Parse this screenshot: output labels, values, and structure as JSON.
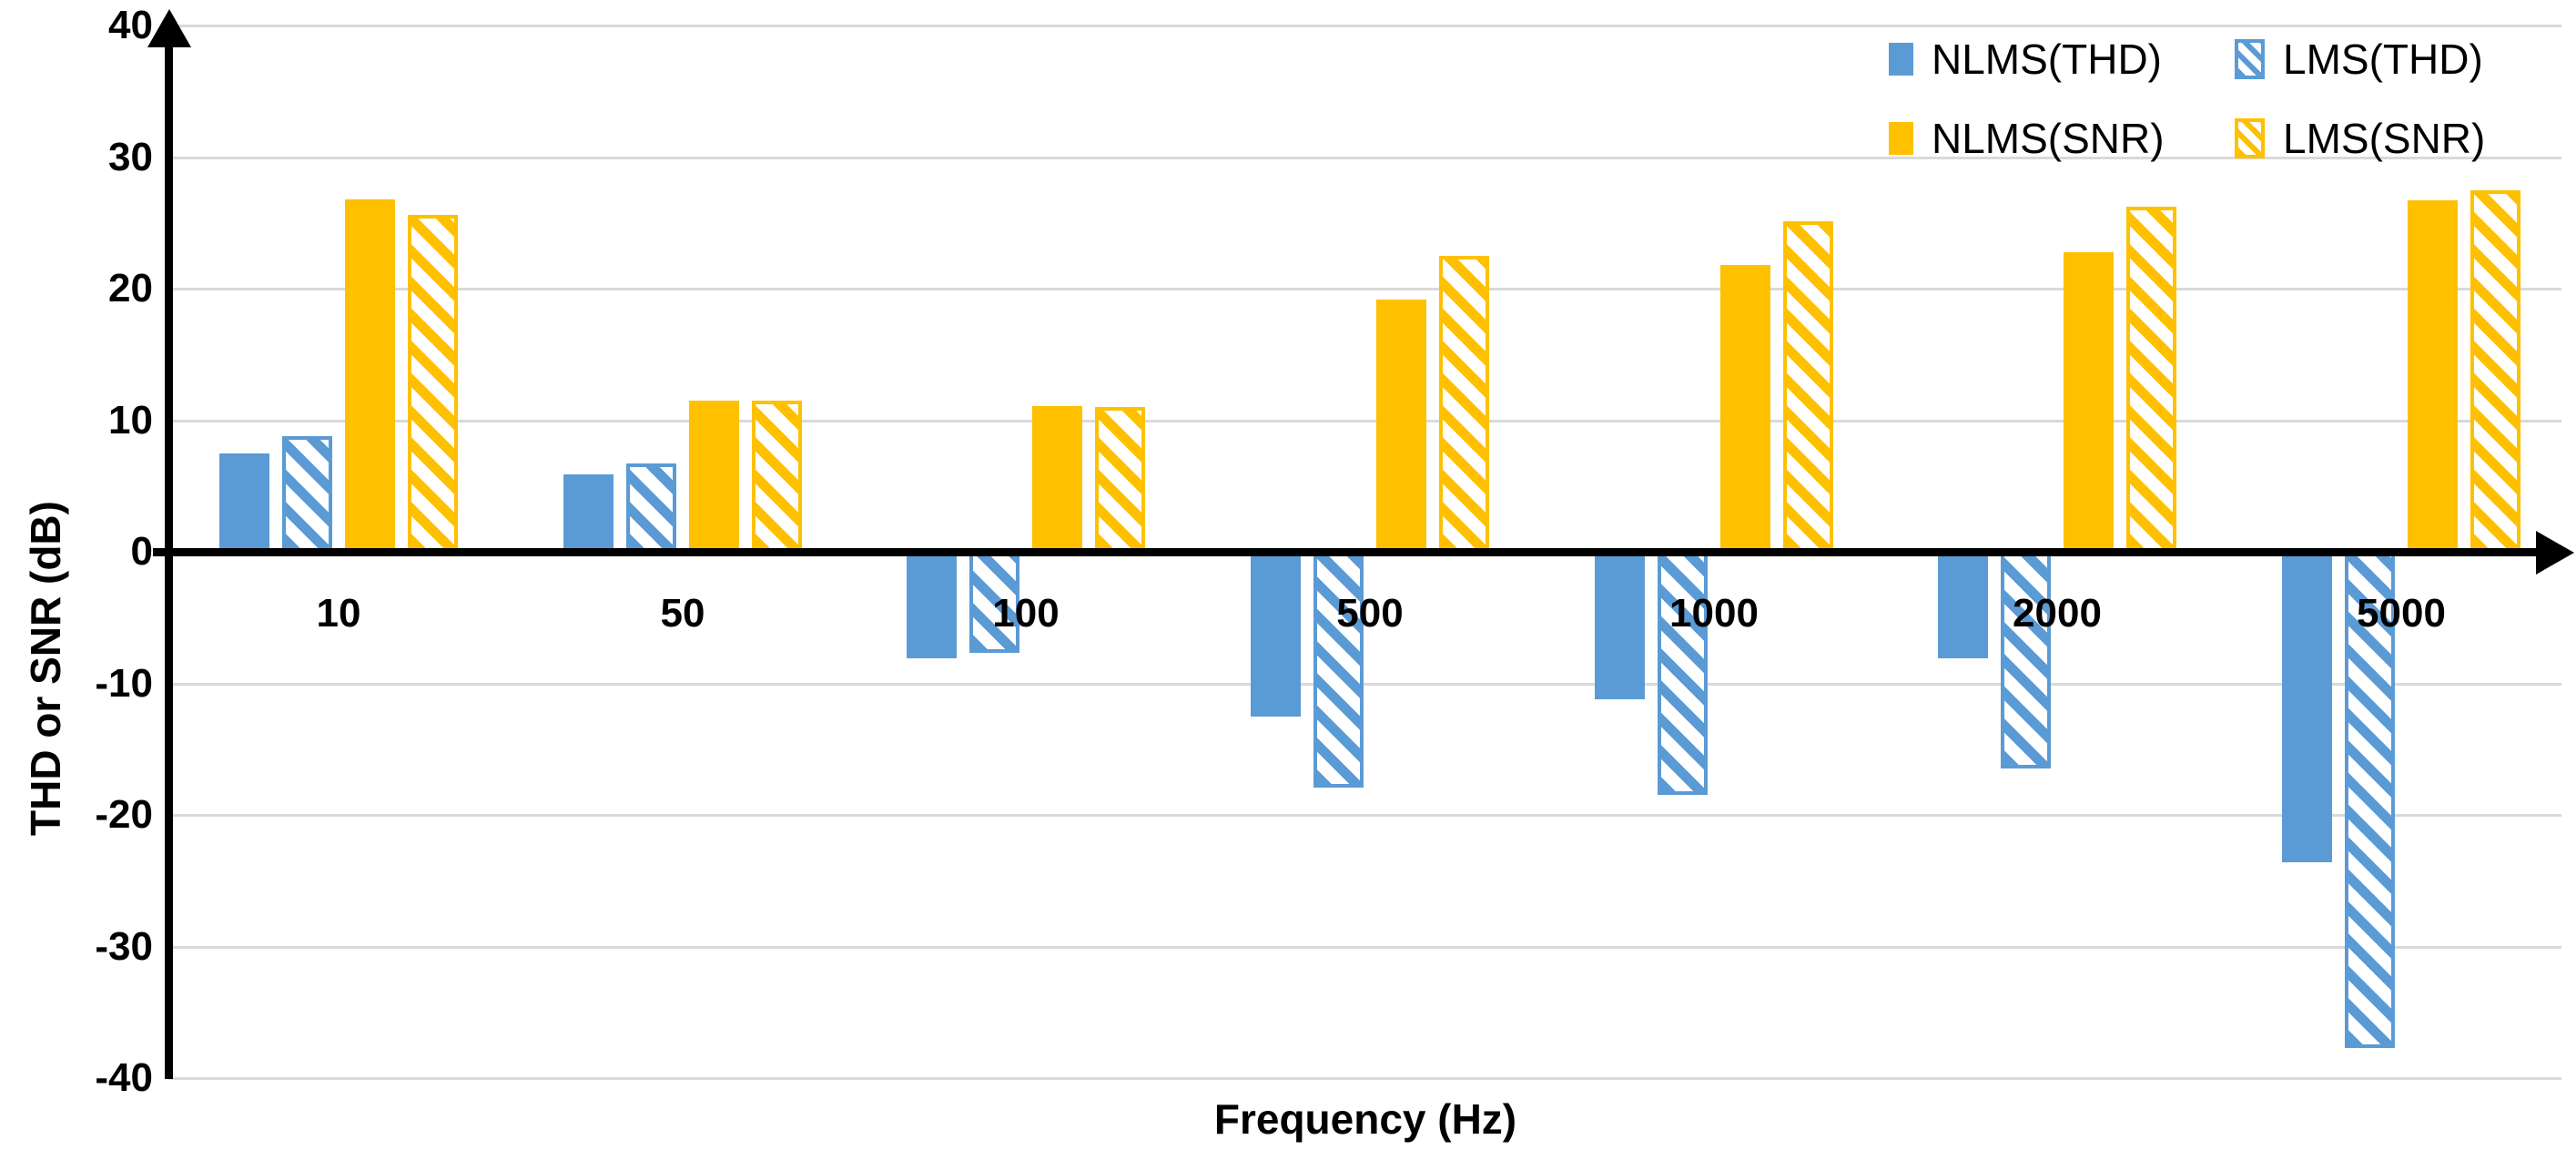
{
  "axes": {
    "y_tick_labels": [
      "40",
      "30",
      "20",
      "10",
      "0",
      "-10",
      "-20",
      "-30",
      "-40"
    ],
    "y_tick_values": [
      40,
      30,
      20,
      10,
      0,
      -10,
      -20,
      -30,
      -40
    ]
  },
  "colors": {
    "blue": "#5B9BD5",
    "orange": "#FFC000",
    "gridline": "#d9d9d9",
    "axis": "#000000",
    "text": "#000000",
    "background": "#ffffff"
  },
  "legend": {
    "items": [
      {
        "label": "NLMS(THD)",
        "color": "#5B9BD5",
        "pattern": "solid"
      },
      {
        "label": "LMS(THD)",
        "color": "#5B9BD5",
        "pattern": "hatch"
      },
      {
        "label": "NLMS(SNR)",
        "color": "#FFC000",
        "pattern": "solid"
      },
      {
        "label": "LMS(SNR)",
        "color": "#FFC000",
        "pattern": "hatch"
      }
    ],
    "position": "top-right",
    "border": "none"
  },
  "chart_data": {
    "type": "bar",
    "title": "",
    "xlabel": "Frequency (Hz)",
    "ylabel": "THD or SNR (dB)",
    "categories": [
      "10",
      "50",
      "100",
      "500",
      "1000",
      "2000",
      "5000"
    ],
    "series": [
      {
        "name": "NLMS(THD)",
        "color": "#5B9BD5",
        "pattern": "solid",
        "values": [
          7.5,
          5.9,
          -8.1,
          -12.5,
          -11.2,
          -8.1,
          -23.6
        ]
      },
      {
        "name": "LMS(THD)",
        "color": "#5B9BD5",
        "pattern": "hatch",
        "values": [
          8.8,
          6.7,
          -7.7,
          -17.9,
          -18.5,
          -16.5,
          -37.7
        ]
      },
      {
        "name": "NLMS(SNR)",
        "color": "#FFC000",
        "pattern": "solid",
        "values": [
          26.8,
          11.5,
          11.1,
          19.2,
          21.8,
          22.8,
          26.7
        ]
      },
      {
        "name": "LMS(SNR)",
        "color": "#FFC000",
        "pattern": "hatch",
        "values": [
          25.6,
          11.5,
          11.0,
          22.5,
          25.1,
          26.2,
          27.5
        ]
      }
    ],
    "ylim": [
      -40,
      40
    ],
    "y_tick_step": 10,
    "grid": true,
    "legend_position": "top-right"
  }
}
